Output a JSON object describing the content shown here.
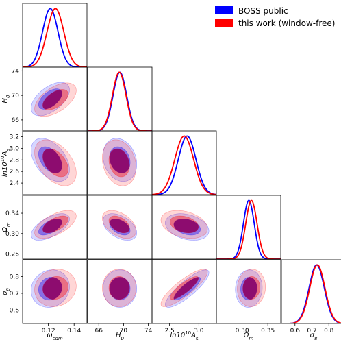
{
  "chart_data": {
    "type": "triangle-corner-plot",
    "parameters": [
      {
        "key": "wcdm",
        "label_base": "ω",
        "label_sub": "cdm",
        "range": [
          0.1,
          0.15
        ],
        "ticks": [
          0.12,
          0.14
        ],
        "tick_labels": [
          "0.12",
          "0.14"
        ]
      },
      {
        "key": "H0",
        "label_base": "H",
        "label_sub": "0",
        "range": [
          64.2,
          74.6
        ],
        "ticks": [
          66,
          70,
          74
        ],
        "tick_labels": [
          "66",
          "70",
          "74"
        ]
      },
      {
        "key": "lnAs",
        "label_base": "ln10",
        "label_sup": "10",
        "label_sub": "s",
        "label_mid": "A",
        "range": [
          2.2,
          3.3
        ],
        "ticks": [
          2.4,
          2.6,
          2.8,
          3.0,
          3.2
        ],
        "tick_labels": [
          "2.4",
          "2.6",
          "2.8",
          "3.0",
          "3.2"
        ],
        "x_ticks": [
          2.5,
          3.0
        ],
        "x_tick_labels": [
          "2.5",
          "3.0"
        ]
      },
      {
        "key": "Om",
        "label_base": "Ω",
        "label_sub": "m",
        "range": [
          0.25,
          0.375
        ],
        "ticks": [
          0.26,
          0.3,
          0.34
        ],
        "tick_labels": [
          "0.26",
          "0.30",
          "0.34"
        ],
        "x_ticks": [
          0.3,
          0.35
        ],
        "x_tick_labels": [
          "0.30",
          "0.35"
        ]
      },
      {
        "key": "s8",
        "label_base": "σ",
        "label_sub": "8",
        "range": [
          0.52,
          0.9
        ],
        "ticks": [
          0.6,
          0.7,
          0.8
        ],
        "tick_labels": [
          "0.6",
          "0.7",
          "0.8"
        ],
        "x_ticks": [
          0.6,
          0.7,
          0.8
        ],
        "x_tick_labels": [
          "0.6",
          "0.7",
          "0.8"
        ]
      }
    ],
    "series": [
      {
        "name": "BOSS public",
        "color": "#0000ff",
        "mean": {
          "wcdm": 0.1215,
          "H0": 69.4,
          "lnAs": 2.8,
          "Om": 0.313,
          "s8": 0.728
        },
        "sigma": {
          "wcdm": 0.006,
          "H0": 1.1,
          "lnAs": 0.15,
          "Om": 0.0105,
          "s8": 0.045
        }
      },
      {
        "name": "this work (window-free)",
        "color": "#ff0000",
        "mean": {
          "wcdm": 0.1255,
          "H0": 69.3,
          "lnAs": 2.75,
          "Om": 0.318,
          "s8": 0.732
        },
        "sigma": {
          "wcdm": 0.0065,
          "H0": 1.1,
          "lnAs": 0.16,
          "Om": 0.011,
          "s8": 0.045
        }
      }
    ],
    "correlations": {
      "wcdm|H0": 0.55,
      "wcdm|lnAs": -0.45,
      "wcdm|Om": 0.6,
      "wcdm|s8": 0.1,
      "H0|lnAs": -0.2,
      "H0|Om": -0.45,
      "H0|s8": 0.0,
      "lnAs|Om": -0.3,
      "lnAs|s8": 0.85,
      "Om|s8": 0.05
    },
    "overlap_color": "#8b0a6e",
    "legend": {
      "placement": "top-right"
    }
  }
}
